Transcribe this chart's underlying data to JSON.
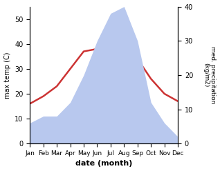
{
  "months": [
    "Jan",
    "Feb",
    "Mar",
    "Apr",
    "May",
    "Jun",
    "Jul",
    "Aug",
    "Sep",
    "Oct",
    "Nov",
    "Dec"
  ],
  "temperature": [
    16,
    19,
    23,
    30,
    37,
    38,
    47,
    40,
    34,
    26,
    20,
    17
  ],
  "precipitation": [
    6,
    8,
    8,
    12,
    20,
    30,
    38,
    40,
    30,
    12,
    6,
    2
  ],
  "temp_color": "#cc3333",
  "precip_color": "#b8c8ee",
  "ylabel_left": "max temp (C)",
  "ylabel_right": "med. precipitation\n(kg/m2)",
  "xlabel": "date (month)",
  "ylim_left": [
    0,
    55
  ],
  "ylim_right": [
    0,
    40
  ],
  "yticks_left": [
    0,
    10,
    20,
    30,
    40,
    50
  ],
  "yticks_right": [
    0,
    10,
    20,
    30,
    40
  ],
  "background_color": "#ffffff",
  "temp_linewidth": 1.8
}
